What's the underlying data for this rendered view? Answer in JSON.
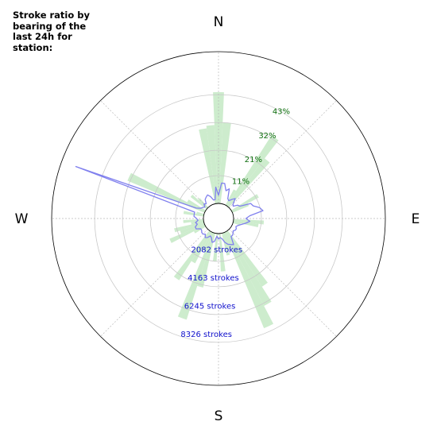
{
  "chart_data": {
    "type": "polar_bar_line",
    "title": "Stroke ratio by bearing of the last 24h for station:",
    "directions": {
      "north": "N",
      "east": "E",
      "south": "S",
      "west": "W"
    },
    "ratio_ticks": [
      {
        "value": 11,
        "label": "11%"
      },
      {
        "value": 21,
        "label": "21%"
      },
      {
        "value": 32,
        "label": "32%"
      },
      {
        "value": 43,
        "label": "43%"
      }
    ],
    "count_ticks": [
      {
        "value": 2082,
        "label": "2082 strokes"
      },
      {
        "value": 4163,
        "label": "4163 strokes"
      },
      {
        "value": 6245,
        "label": "6245 strokes"
      },
      {
        "value": 8326,
        "label": "8326 strokes"
      }
    ],
    "ratio_series": {
      "color": "#cdeccd",
      "sector_width_deg": 5,
      "bearings": [
        0,
        5,
        30,
        35,
        40,
        60,
        65,
        95,
        100,
        105,
        145,
        150,
        155,
        160,
        165,
        175,
        185,
        195,
        200,
        205,
        210,
        215,
        240,
        245,
        250,
        255,
        260,
        265,
        280,
        285,
        295,
        300,
        310,
        315,
        350,
        355
      ],
      "values": [
        44,
        32,
        7,
        33,
        24,
        12,
        7,
        12,
        10,
        3,
        26,
        33,
        41,
        7,
        9,
        15,
        11,
        22,
        36,
        8,
        14,
        23,
        5,
        15,
        10,
        12,
        5,
        8,
        8,
        3,
        33,
        8,
        8,
        5,
        30,
        31
      ]
    },
    "count_series": {
      "color": "#8080ee",
      "bearings": [
        0,
        5,
        10,
        15,
        20,
        25,
        30,
        35,
        40,
        45,
        50,
        55,
        60,
        65,
        70,
        75,
        80,
        85,
        90,
        95,
        100,
        105,
        110,
        115,
        120,
        125,
        130,
        135,
        140,
        145,
        150,
        155,
        160,
        165,
        170,
        175,
        180,
        185,
        190,
        195,
        200,
        205,
        210,
        215,
        220,
        225,
        230,
        235,
        240,
        245,
        250,
        255,
        260,
        265,
        270,
        275,
        280,
        285,
        290,
        295,
        300,
        305,
        310,
        315,
        320,
        325,
        330,
        335,
        340,
        345,
        350,
        355
      ],
      "values": [
        600,
        1500,
        1500,
        1000,
        1200,
        500,
        400,
        600,
        800,
        400,
        300,
        600,
        700,
        1500,
        1600,
        2000,
        2200,
        1200,
        900,
        1200,
        900,
        600,
        400,
        300,
        400,
        400,
        300,
        400,
        500,
        500,
        1100,
        1000,
        900,
        700,
        400,
        300,
        400,
        200,
        600,
        700,
        400,
        300,
        500,
        600,
        400,
        500,
        500,
        400,
        400,
        700,
        700,
        500,
        600,
        400,
        500,
        700,
        700,
        700,
        10000,
        700,
        400,
        300,
        200,
        400,
        300,
        600,
        700,
        800,
        600,
        300,
        300,
        1200
      ]
    },
    "ratio_max": 60,
    "count_max": 11100,
    "grid": true
  }
}
